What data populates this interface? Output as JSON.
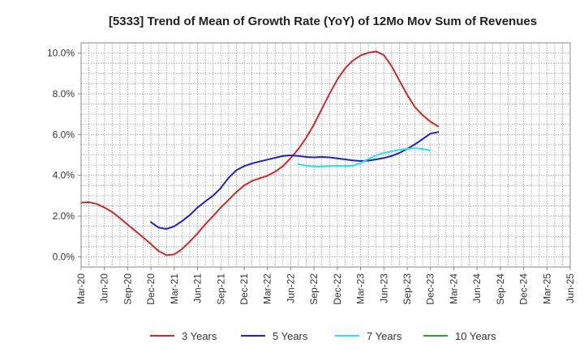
{
  "chart_data": {
    "type": "line",
    "title": "[5333]  Trend of Mean of Growth Rate (YoY) of 12Mo Mov Sum of Revenues",
    "xlabel": "",
    "ylabel": "",
    "ylim": [
      -0.5,
      10.5
    ],
    "yticks": [
      0,
      2,
      4,
      6,
      8,
      10
    ],
    "ytick_labels": [
      "0.0%",
      "2.0%",
      "4.0%",
      "6.0%",
      "8.0%",
      "10.0%"
    ],
    "xlim": [
      0,
      63
    ],
    "xticks": [
      0,
      3,
      6,
      9,
      12,
      15,
      18,
      21,
      24,
      27,
      30,
      33,
      36,
      39,
      42,
      45,
      48,
      51,
      54,
      57,
      60,
      63
    ],
    "xtick_labels": [
      "Mar-20",
      "Jun-20",
      "Sep-20",
      "Dec-20",
      "Mar-21",
      "Jun-21",
      "Sep-21",
      "Dec-21",
      "Mar-22",
      "Jun-22",
      "Sep-22",
      "Dec-22",
      "Mar-23",
      "Jun-23",
      "Sep-23",
      "Dec-23",
      "Mar-24",
      "Jun-24",
      "Sep-24",
      "Dec-24",
      "Mar-25",
      "Jun-25"
    ],
    "grid": true,
    "legend_position": "bottom",
    "series": [
      {
        "name": "3 Years",
        "color": "#d62728",
        "points": [
          [
            0,
            2.65
          ],
          [
            1,
            2.68
          ],
          [
            2,
            2.6
          ],
          [
            3,
            2.42
          ],
          [
            4,
            2.2
          ],
          [
            5,
            1.9
          ],
          [
            6,
            1.58
          ],
          [
            7,
            1.27
          ],
          [
            8,
            0.95
          ],
          [
            9,
            0.62
          ],
          [
            10,
            0.28
          ],
          [
            11,
            0.08
          ],
          [
            12,
            0.12
          ],
          [
            13,
            0.38
          ],
          [
            14,
            0.75
          ],
          [
            15,
            1.15
          ],
          [
            16,
            1.6
          ],
          [
            17,
            2.0
          ],
          [
            18,
            2.42
          ],
          [
            19,
            2.8
          ],
          [
            20,
            3.18
          ],
          [
            21,
            3.5
          ],
          [
            22,
            3.72
          ],
          [
            23,
            3.85
          ],
          [
            24,
            3.98
          ],
          [
            25,
            4.18
          ],
          [
            26,
            4.45
          ],
          [
            27,
            4.85
          ],
          [
            28,
            5.3
          ],
          [
            29,
            5.85
          ],
          [
            30,
            6.5
          ],
          [
            31,
            7.25
          ],
          [
            32,
            8.0
          ],
          [
            33,
            8.7
          ],
          [
            34,
            9.25
          ],
          [
            35,
            9.63
          ],
          [
            36,
            9.88
          ],
          [
            37,
            10.02
          ],
          [
            38,
            10.08
          ],
          [
            39,
            9.9
          ],
          [
            40,
            9.35
          ],
          [
            41,
            8.65
          ],
          [
            42,
            7.95
          ],
          [
            43,
            7.35
          ],
          [
            44,
            6.95
          ],
          [
            45,
            6.63
          ],
          [
            46,
            6.4
          ]
        ]
      },
      {
        "name": "5 Years",
        "color": "#1f1fcf",
        "points": [
          [
            9,
            1.7
          ],
          [
            10,
            1.43
          ],
          [
            11,
            1.37
          ],
          [
            12,
            1.5
          ],
          [
            13,
            1.75
          ],
          [
            14,
            2.05
          ],
          [
            15,
            2.42
          ],
          [
            16,
            2.72
          ],
          [
            17,
            3.0
          ],
          [
            18,
            3.38
          ],
          [
            19,
            3.88
          ],
          [
            20,
            4.25
          ],
          [
            21,
            4.45
          ],
          [
            22,
            4.58
          ],
          [
            23,
            4.68
          ],
          [
            24,
            4.77
          ],
          [
            25,
            4.86
          ],
          [
            26,
            4.95
          ],
          [
            27,
            4.98
          ],
          [
            28,
            4.95
          ],
          [
            29,
            4.9
          ],
          [
            30,
            4.88
          ],
          [
            31,
            4.9
          ],
          [
            32,
            4.88
          ],
          [
            33,
            4.83
          ],
          [
            34,
            4.78
          ],
          [
            35,
            4.73
          ],
          [
            36,
            4.7
          ],
          [
            37,
            4.72
          ],
          [
            38,
            4.78
          ],
          [
            39,
            4.85
          ],
          [
            40,
            4.95
          ],
          [
            41,
            5.1
          ],
          [
            42,
            5.3
          ],
          [
            43,
            5.52
          ],
          [
            44,
            5.78
          ],
          [
            45,
            6.05
          ],
          [
            46,
            6.12
          ]
        ]
      },
      {
        "name": "7 Years",
        "color": "#22e5ee",
        "points": [
          [
            28,
            4.55
          ],
          [
            29,
            4.47
          ],
          [
            30,
            4.43
          ],
          [
            31,
            4.43
          ],
          [
            32,
            4.45
          ],
          [
            33,
            4.46
          ],
          [
            34,
            4.46
          ],
          [
            35,
            4.47
          ],
          [
            36,
            4.6
          ],
          [
            37,
            4.8
          ],
          [
            38,
            4.98
          ],
          [
            39,
            5.1
          ],
          [
            40,
            5.18
          ],
          [
            41,
            5.25
          ],
          [
            42,
            5.3
          ],
          [
            43,
            5.33
          ],
          [
            44,
            5.3
          ],
          [
            45,
            5.22
          ]
        ]
      },
      {
        "name": "10 Years",
        "color": "#2ca02c",
        "points": []
      }
    ]
  }
}
